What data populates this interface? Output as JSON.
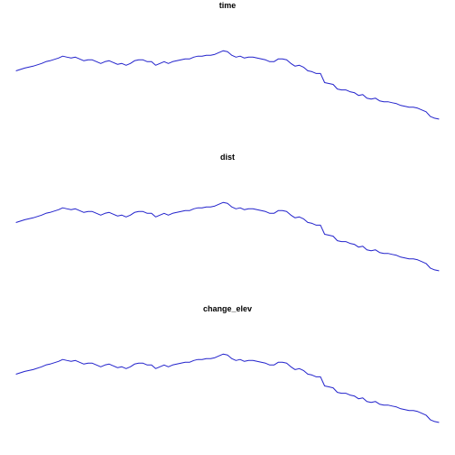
{
  "chart_data": [
    {
      "type": "line",
      "title": "time",
      "xlabel": "",
      "ylabel": "",
      "grid": false,
      "line_color": "#2222cc",
      "xlim": [
        0,
        100
      ],
      "ylim": [
        0,
        100
      ],
      "x": [
        0,
        2,
        4,
        6,
        7,
        8,
        10,
        11,
        12,
        13,
        14,
        15,
        16,
        17,
        18,
        19,
        20,
        21,
        22,
        23,
        24,
        25,
        26,
        27,
        28,
        29,
        30,
        31,
        32,
        33,
        34,
        35,
        36,
        37,
        38,
        39,
        40,
        41,
        42,
        43,
        44,
        45,
        46,
        47,
        48,
        49,
        50,
        51,
        52,
        53,
        54,
        55,
        56,
        57,
        58,
        59,
        60,
        61,
        62,
        63,
        64,
        65,
        66,
        67,
        68,
        69,
        70,
        71,
        72,
        73,
        74,
        75,
        76,
        77,
        78,
        79,
        80,
        81,
        82,
        83,
        84,
        85,
        86,
        87,
        88,
        89,
        90,
        91,
        92,
        93,
        94,
        95,
        96,
        97,
        98,
        99,
        100
      ],
      "values": [
        60,
        63,
        65,
        68,
        70,
        71,
        74,
        76,
        75,
        74,
        75,
        73,
        71,
        72,
        72,
        70,
        68,
        70,
        71,
        69,
        67,
        68,
        66,
        68,
        71,
        72,
        72,
        70,
        70,
        66,
        68,
        70,
        68,
        70,
        71,
        72,
        73,
        73,
        75,
        76,
        76,
        77,
        77,
        78,
        80,
        82,
        81,
        77,
        75,
        76,
        74,
        75,
        75,
        74,
        73,
        72,
        70,
        70,
        73,
        73,
        72,
        68,
        65,
        66,
        64,
        60,
        59,
        57,
        57,
        47,
        46,
        45,
        40,
        39,
        39,
        37,
        36,
        33,
        34,
        30,
        29,
        30,
        27,
        26,
        26,
        25,
        24,
        22,
        21,
        20,
        20,
        19,
        17,
        15,
        10,
        8,
        7
      ]
    },
    {
      "type": "line",
      "title": "dist",
      "xlabel": "",
      "ylabel": "",
      "grid": false,
      "line_color": "#2222cc",
      "xlim": [
        0,
        100
      ],
      "ylim": [
        0,
        100
      ],
      "x": [
        0,
        2,
        4,
        6,
        7,
        8,
        10,
        11,
        12,
        13,
        14,
        15,
        16,
        17,
        18,
        19,
        20,
        21,
        22,
        23,
        24,
        25,
        26,
        27,
        28,
        29,
        30,
        31,
        32,
        33,
        34,
        35,
        36,
        37,
        38,
        39,
        40,
        41,
        42,
        43,
        44,
        45,
        46,
        47,
        48,
        49,
        50,
        51,
        52,
        53,
        54,
        55,
        56,
        57,
        58,
        59,
        60,
        61,
        62,
        63,
        64,
        65,
        66,
        67,
        68,
        69,
        70,
        71,
        72,
        73,
        74,
        75,
        76,
        77,
        78,
        79,
        80,
        81,
        82,
        83,
        84,
        85,
        86,
        87,
        88,
        89,
        90,
        91,
        92,
        93,
        94,
        95,
        96,
        97,
        98,
        99,
        100
      ],
      "values": [
        60,
        63,
        65,
        68,
        70,
        71,
        74,
        76,
        75,
        74,
        75,
        73,
        71,
        72,
        72,
        70,
        68,
        70,
        71,
        69,
        67,
        68,
        66,
        68,
        71,
        72,
        72,
        70,
        70,
        66,
        68,
        70,
        68,
        70,
        71,
        72,
        73,
        73,
        75,
        76,
        76,
        77,
        77,
        78,
        80,
        82,
        81,
        77,
        75,
        76,
        74,
        75,
        75,
        74,
        73,
        72,
        70,
        70,
        73,
        73,
        72,
        68,
        65,
        66,
        64,
        60,
        59,
        57,
        57,
        47,
        46,
        45,
        40,
        39,
        39,
        37,
        36,
        33,
        34,
        30,
        29,
        30,
        27,
        26,
        26,
        25,
        24,
        22,
        21,
        20,
        20,
        19,
        17,
        15,
        10,
        8,
        7
      ]
    },
    {
      "type": "line",
      "title": "change_elev",
      "xlabel": "",
      "ylabel": "",
      "grid": false,
      "line_color": "#2222cc",
      "xlim": [
        0,
        100
      ],
      "ylim": [
        0,
        100
      ],
      "x": [
        0,
        2,
        4,
        6,
        7,
        8,
        10,
        11,
        12,
        13,
        14,
        15,
        16,
        17,
        18,
        19,
        20,
        21,
        22,
        23,
        24,
        25,
        26,
        27,
        28,
        29,
        30,
        31,
        32,
        33,
        34,
        35,
        36,
        37,
        38,
        39,
        40,
        41,
        42,
        43,
        44,
        45,
        46,
        47,
        48,
        49,
        50,
        51,
        52,
        53,
        54,
        55,
        56,
        57,
        58,
        59,
        60,
        61,
        62,
        63,
        64,
        65,
        66,
        67,
        68,
        69,
        70,
        71,
        72,
        73,
        74,
        75,
        76,
        77,
        78,
        79,
        80,
        81,
        82,
        83,
        84,
        85,
        86,
        87,
        88,
        89,
        90,
        91,
        92,
        93,
        94,
        95,
        96,
        97,
        98,
        99,
        100
      ],
      "values": [
        60,
        63,
        65,
        68,
        70,
        71,
        74,
        76,
        75,
        74,
        75,
        73,
        71,
        72,
        72,
        70,
        68,
        70,
        71,
        69,
        67,
        68,
        66,
        68,
        71,
        72,
        72,
        70,
        70,
        66,
        68,
        70,
        68,
        70,
        71,
        72,
        73,
        73,
        75,
        76,
        76,
        77,
        77,
        78,
        80,
        82,
        81,
        77,
        75,
        76,
        74,
        75,
        75,
        74,
        73,
        72,
        70,
        70,
        73,
        73,
        72,
        68,
        65,
        66,
        64,
        60,
        59,
        57,
        57,
        47,
        46,
        45,
        40,
        39,
        39,
        37,
        36,
        33,
        34,
        30,
        29,
        30,
        27,
        26,
        26,
        25,
        24,
        22,
        21,
        20,
        20,
        19,
        17,
        15,
        10,
        8,
        7
      ]
    }
  ]
}
